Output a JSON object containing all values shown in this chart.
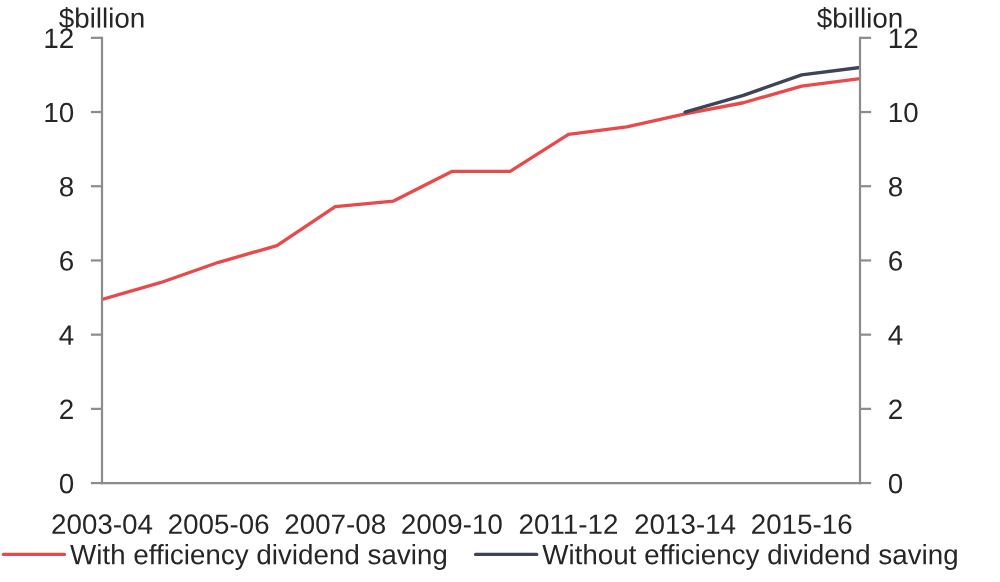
{
  "chart_data": {
    "type": "line",
    "categories": [
      "2003-04",
      null,
      "2005-06",
      null,
      "2007-08",
      null,
      "2009-10",
      null,
      "2011-12",
      null,
      "2013-14",
      null,
      "2015-16",
      null
    ],
    "series": [
      {
        "name": "With efficiency dividend saving",
        "color": "#e8494a",
        "values": [
          4.95,
          5.4,
          5.95,
          6.4,
          7.45,
          7.6,
          8.4,
          8.4,
          9.4,
          9.6,
          9.95,
          10.25,
          10.7,
          10.9
        ]
      },
      {
        "name": "Without efficiency dividend saving",
        "color": "#3d4458",
        "values": [
          null,
          null,
          null,
          null,
          null,
          null,
          null,
          null,
          null,
          null,
          10.0,
          10.45,
          11.0,
          11.2
        ]
      }
    ],
    "ylabel": "$billion",
    "y2label": "$billion",
    "ylim": [
      0,
      12
    ],
    "yticks": [
      0,
      2,
      4,
      6,
      8,
      10,
      12
    ],
    "y2lim": [
      0,
      12
    ],
    "y2ticks": [
      0,
      2,
      4,
      6,
      8,
      10,
      12
    ],
    "grid": false,
    "legend": "bottom",
    "marker": "none",
    "line_style": "solid"
  }
}
